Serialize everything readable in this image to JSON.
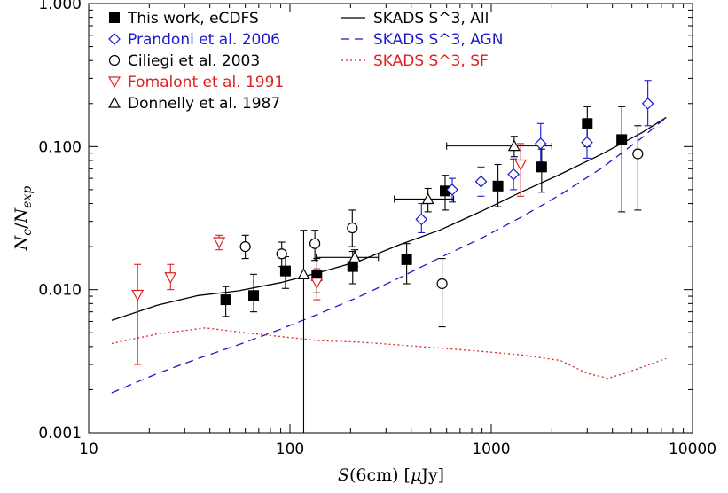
{
  "chart_data": {
    "type": "scatter",
    "title": "",
    "x_scale": "log",
    "y_scale": "log",
    "xlim": [
      10,
      10000
    ],
    "ylim": [
      0.001,
      1.0
    ],
    "x_tick_labels": [
      "10",
      "100",
      "1000",
      "10000"
    ],
    "x_tick_values": [
      10,
      100,
      1000,
      10000
    ],
    "y_tick_labels": [
      "0.001",
      "0.010",
      "0.100",
      "1.000"
    ],
    "y_tick_values": [
      0.001,
      0.01,
      0.1,
      1.0
    ],
    "xlabel": {
      "prefix": "S",
      "rest": "(6cm) [",
      "mu": "μ",
      "unit": "Jy]"
    },
    "ylabel": {
      "num": "N",
      "num_sub": "c",
      "den": "N",
      "den_sub": "exp"
    },
    "legend_placement": "top-left",
    "colors": {
      "black": "#000000",
      "blue": "#1a1acc",
      "red": "#e02020"
    },
    "series": [
      {
        "name": "This work, eCDFS",
        "marker": "filled-square",
        "color": "#000000",
        "points": [
          {
            "x": 48,
            "y": 0.0085,
            "ylo": 0.0065,
            "yhi": 0.0105
          },
          {
            "x": 66,
            "y": 0.0091,
            "ylo": 0.007,
            "yhi": 0.0128
          },
          {
            "x": 95,
            "y": 0.0135,
            "ylo": 0.0102,
            "yhi": 0.017
          },
          {
            "x": 136,
            "y": 0.0125,
            "ylo": 0.0095,
            "yhi": 0.0165
          },
          {
            "x": 205,
            "y": 0.0145,
            "ylo": 0.011,
            "yhi": 0.0185
          },
          {
            "x": 380,
            "y": 0.0162,
            "ylo": 0.011,
            "yhi": 0.021
          },
          {
            "x": 590,
            "y": 0.049,
            "ylo": 0.036,
            "yhi": 0.063
          },
          {
            "x": 1080,
            "y": 0.053,
            "ylo": 0.038,
            "yhi": 0.075
          },
          {
            "x": 1780,
            "y": 0.072,
            "ylo": 0.048,
            "yhi": 0.096
          },
          {
            "x": 3000,
            "y": 0.145,
            "ylo": 0.1,
            "yhi": 0.19
          },
          {
            "x": 4450,
            "y": 0.112,
            "ylo": 0.035,
            "yhi": 0.19
          }
        ]
      },
      {
        "name": "Prandoni et al. 2006",
        "marker": "open-diamond",
        "color": "#1a1acc",
        "points": [
          {
            "x": 450,
            "y": 0.031,
            "ylo": 0.025,
            "yhi": 0.04
          },
          {
            "x": 640,
            "y": 0.05,
            "ylo": 0.041,
            "yhi": 0.06
          },
          {
            "x": 890,
            "y": 0.057,
            "ylo": 0.045,
            "yhi": 0.072
          },
          {
            "x": 1290,
            "y": 0.064,
            "ylo": 0.05,
            "yhi": 0.082
          },
          {
            "x": 1760,
            "y": 0.105,
            "ylo": 0.078,
            "yhi": 0.145
          },
          {
            "x": 2990,
            "y": 0.107,
            "ylo": 0.083,
            "yhi": 0.14
          },
          {
            "x": 6000,
            "y": 0.2,
            "ylo": 0.14,
            "yhi": 0.29
          }
        ]
      },
      {
        "name": "Ciliegi et al. 2003",
        "marker": "open-circle",
        "color": "#000000",
        "points": [
          {
            "x": 60,
            "y": 0.02,
            "ylo": 0.0165,
            "yhi": 0.024
          },
          {
            "x": 91,
            "y": 0.0178,
            "ylo": 0.0145,
            "yhi": 0.0215
          },
          {
            "x": 133,
            "y": 0.021,
            "ylo": 0.016,
            "yhi": 0.026
          },
          {
            "x": 204,
            "y": 0.027,
            "ylo": 0.02,
            "yhi": 0.036
          },
          {
            "x": 570,
            "y": 0.011,
            "ylo": 0.0055,
            "yhi": 0.0165
          },
          {
            "x": 5350,
            "y": 0.089,
            "ylo": 0.036,
            "yhi": 0.14
          }
        ]
      },
      {
        "name": "Fomalont et al. 1991",
        "marker": "open-triangle-down",
        "color": "#e02020",
        "points": [
          {
            "x": 17.5,
            "y": 0.0092,
            "ylo": 0.003,
            "yhi": 0.015
          },
          {
            "x": 25.5,
            "y": 0.0122,
            "ylo": 0.01,
            "yhi": 0.015
          },
          {
            "x": 44.5,
            "y": 0.0215,
            "ylo": 0.019,
            "yhi": 0.024
          },
          {
            "x": 136,
            "y": 0.0112,
            "ylo": 0.0085,
            "yhi": 0.014
          },
          {
            "x": 1400,
            "y": 0.075,
            "ylo": 0.045,
            "yhi": 0.105
          }
        ]
      },
      {
        "name": "Donnelly et al. 1987",
        "marker": "open-triangle-up",
        "color": "#000000",
        "points": [
          {
            "x": 117,
            "y": 0.0128,
            "ylo": 0.001,
            "yhi": 0.026,
            "xlo": 117,
            "xhi": 117
          },
          {
            "x": 210,
            "y": 0.0168,
            "ylo": 0.0145,
            "yhi": 0.019,
            "xlo": 135,
            "xhi": 275
          },
          {
            "x": 485,
            "y": 0.043,
            "ylo": 0.035,
            "yhi": 0.051,
            "xlo": 330,
            "xhi": 650
          },
          {
            "x": 1300,
            "y": 0.101,
            "ylo": 0.085,
            "yhi": 0.118,
            "xlo": 600,
            "xhi": 2000
          }
        ]
      }
    ],
    "lines": [
      {
        "name": "SKADS S^3, All",
        "style": "solid",
        "color": "#000000",
        "x": [
          13,
          22,
          35,
          55,
          90,
          140,
          220,
          350,
          560,
          900,
          1400,
          2200,
          3500,
          5600,
          7400
        ],
        "y": [
          0.0061,
          0.0078,
          0.0091,
          0.0098,
          0.0112,
          0.0132,
          0.0158,
          0.0206,
          0.0262,
          0.0355,
          0.048,
          0.064,
          0.088,
          0.125,
          0.16
        ]
      },
      {
        "name": "SKADS S^3, AGN",
        "style": "dashed",
        "color": "#1a1acc",
        "x": [
          13,
          22,
          35,
          55,
          90,
          140,
          220,
          350,
          560,
          900,
          1400,
          2200,
          3500,
          5600,
          7400
        ],
        "y": [
          0.0019,
          0.0026,
          0.0033,
          0.0041,
          0.0053,
          0.0068,
          0.0089,
          0.0121,
          0.0168,
          0.023,
          0.032,
          0.046,
          0.07,
          0.115,
          0.16
        ]
      },
      {
        "name": "SKADS S^3, SF",
        "style": "dotted",
        "color": "#e02020",
        "x": [
          13,
          22,
          38,
          60,
          90,
          140,
          220,
          350,
          560,
          900,
          1400,
          2200,
          3000,
          3800,
          4600,
          7400
        ],
        "y": [
          0.0042,
          0.0049,
          0.0054,
          0.005,
          0.0047,
          0.0044,
          0.0043,
          0.0041,
          0.0039,
          0.0037,
          0.0035,
          0.0032,
          0.0026,
          0.0024,
          0.0026,
          0.0033
        ]
      }
    ]
  }
}
